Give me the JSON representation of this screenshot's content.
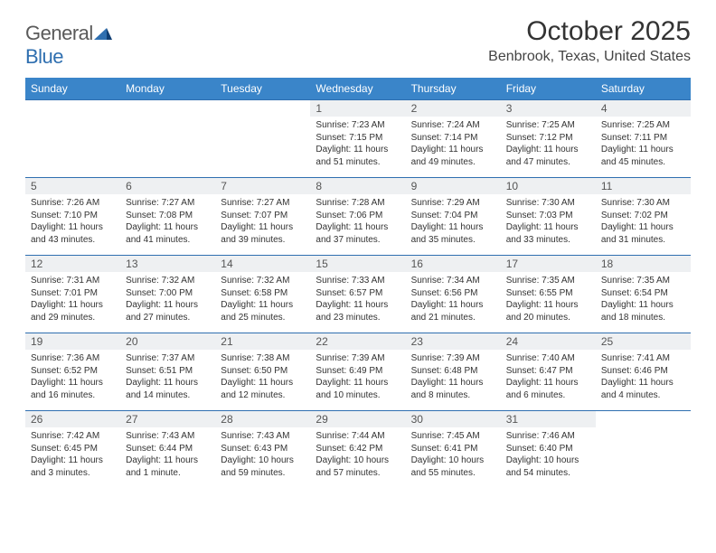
{
  "brand": {
    "name_a": "General",
    "name_b": "Blue"
  },
  "title": "October 2025",
  "location": "Benbrook, Texas, United States",
  "colors": {
    "header_bg": "#3a85c9",
    "header_text": "#ffffff",
    "row_border": "#2f6fb0",
    "daynum_bg": "#eef0f2",
    "brand_gray": "#5a5a5a",
    "brand_blue": "#2f6fb0",
    "text": "#333333"
  },
  "weekday_labels": [
    "Sunday",
    "Monday",
    "Tuesday",
    "Wednesday",
    "Thursday",
    "Friday",
    "Saturday"
  ],
  "weeks": [
    [
      {
        "day": "",
        "sunrise": "",
        "sunset": "",
        "daylight": ""
      },
      {
        "day": "",
        "sunrise": "",
        "sunset": "",
        "daylight": ""
      },
      {
        "day": "",
        "sunrise": "",
        "sunset": "",
        "daylight": ""
      },
      {
        "day": "1",
        "sunrise": "Sunrise: 7:23 AM",
        "sunset": "Sunset: 7:15 PM",
        "daylight": "Daylight: 11 hours and 51 minutes."
      },
      {
        "day": "2",
        "sunrise": "Sunrise: 7:24 AM",
        "sunset": "Sunset: 7:14 PM",
        "daylight": "Daylight: 11 hours and 49 minutes."
      },
      {
        "day": "3",
        "sunrise": "Sunrise: 7:25 AM",
        "sunset": "Sunset: 7:12 PM",
        "daylight": "Daylight: 11 hours and 47 minutes."
      },
      {
        "day": "4",
        "sunrise": "Sunrise: 7:25 AM",
        "sunset": "Sunset: 7:11 PM",
        "daylight": "Daylight: 11 hours and 45 minutes."
      }
    ],
    [
      {
        "day": "5",
        "sunrise": "Sunrise: 7:26 AM",
        "sunset": "Sunset: 7:10 PM",
        "daylight": "Daylight: 11 hours and 43 minutes."
      },
      {
        "day": "6",
        "sunrise": "Sunrise: 7:27 AM",
        "sunset": "Sunset: 7:08 PM",
        "daylight": "Daylight: 11 hours and 41 minutes."
      },
      {
        "day": "7",
        "sunrise": "Sunrise: 7:27 AM",
        "sunset": "Sunset: 7:07 PM",
        "daylight": "Daylight: 11 hours and 39 minutes."
      },
      {
        "day": "8",
        "sunrise": "Sunrise: 7:28 AM",
        "sunset": "Sunset: 7:06 PM",
        "daylight": "Daylight: 11 hours and 37 minutes."
      },
      {
        "day": "9",
        "sunrise": "Sunrise: 7:29 AM",
        "sunset": "Sunset: 7:04 PM",
        "daylight": "Daylight: 11 hours and 35 minutes."
      },
      {
        "day": "10",
        "sunrise": "Sunrise: 7:30 AM",
        "sunset": "Sunset: 7:03 PM",
        "daylight": "Daylight: 11 hours and 33 minutes."
      },
      {
        "day": "11",
        "sunrise": "Sunrise: 7:30 AM",
        "sunset": "Sunset: 7:02 PM",
        "daylight": "Daylight: 11 hours and 31 minutes."
      }
    ],
    [
      {
        "day": "12",
        "sunrise": "Sunrise: 7:31 AM",
        "sunset": "Sunset: 7:01 PM",
        "daylight": "Daylight: 11 hours and 29 minutes."
      },
      {
        "day": "13",
        "sunrise": "Sunrise: 7:32 AM",
        "sunset": "Sunset: 7:00 PM",
        "daylight": "Daylight: 11 hours and 27 minutes."
      },
      {
        "day": "14",
        "sunrise": "Sunrise: 7:32 AM",
        "sunset": "Sunset: 6:58 PM",
        "daylight": "Daylight: 11 hours and 25 minutes."
      },
      {
        "day": "15",
        "sunrise": "Sunrise: 7:33 AM",
        "sunset": "Sunset: 6:57 PM",
        "daylight": "Daylight: 11 hours and 23 minutes."
      },
      {
        "day": "16",
        "sunrise": "Sunrise: 7:34 AM",
        "sunset": "Sunset: 6:56 PM",
        "daylight": "Daylight: 11 hours and 21 minutes."
      },
      {
        "day": "17",
        "sunrise": "Sunrise: 7:35 AM",
        "sunset": "Sunset: 6:55 PM",
        "daylight": "Daylight: 11 hours and 20 minutes."
      },
      {
        "day": "18",
        "sunrise": "Sunrise: 7:35 AM",
        "sunset": "Sunset: 6:54 PM",
        "daylight": "Daylight: 11 hours and 18 minutes."
      }
    ],
    [
      {
        "day": "19",
        "sunrise": "Sunrise: 7:36 AM",
        "sunset": "Sunset: 6:52 PM",
        "daylight": "Daylight: 11 hours and 16 minutes."
      },
      {
        "day": "20",
        "sunrise": "Sunrise: 7:37 AM",
        "sunset": "Sunset: 6:51 PM",
        "daylight": "Daylight: 11 hours and 14 minutes."
      },
      {
        "day": "21",
        "sunrise": "Sunrise: 7:38 AM",
        "sunset": "Sunset: 6:50 PM",
        "daylight": "Daylight: 11 hours and 12 minutes."
      },
      {
        "day": "22",
        "sunrise": "Sunrise: 7:39 AM",
        "sunset": "Sunset: 6:49 PM",
        "daylight": "Daylight: 11 hours and 10 minutes."
      },
      {
        "day": "23",
        "sunrise": "Sunrise: 7:39 AM",
        "sunset": "Sunset: 6:48 PM",
        "daylight": "Daylight: 11 hours and 8 minutes."
      },
      {
        "day": "24",
        "sunrise": "Sunrise: 7:40 AM",
        "sunset": "Sunset: 6:47 PM",
        "daylight": "Daylight: 11 hours and 6 minutes."
      },
      {
        "day": "25",
        "sunrise": "Sunrise: 7:41 AM",
        "sunset": "Sunset: 6:46 PM",
        "daylight": "Daylight: 11 hours and 4 minutes."
      }
    ],
    [
      {
        "day": "26",
        "sunrise": "Sunrise: 7:42 AM",
        "sunset": "Sunset: 6:45 PM",
        "daylight": "Daylight: 11 hours and 3 minutes."
      },
      {
        "day": "27",
        "sunrise": "Sunrise: 7:43 AM",
        "sunset": "Sunset: 6:44 PM",
        "daylight": "Daylight: 11 hours and 1 minute."
      },
      {
        "day": "28",
        "sunrise": "Sunrise: 7:43 AM",
        "sunset": "Sunset: 6:43 PM",
        "daylight": "Daylight: 10 hours and 59 minutes."
      },
      {
        "day": "29",
        "sunrise": "Sunrise: 7:44 AM",
        "sunset": "Sunset: 6:42 PM",
        "daylight": "Daylight: 10 hours and 57 minutes."
      },
      {
        "day": "30",
        "sunrise": "Sunrise: 7:45 AM",
        "sunset": "Sunset: 6:41 PM",
        "daylight": "Daylight: 10 hours and 55 minutes."
      },
      {
        "day": "31",
        "sunrise": "Sunrise: 7:46 AM",
        "sunset": "Sunset: 6:40 PM",
        "daylight": "Daylight: 10 hours and 54 minutes."
      },
      {
        "day": "",
        "sunrise": "",
        "sunset": "",
        "daylight": ""
      }
    ]
  ]
}
